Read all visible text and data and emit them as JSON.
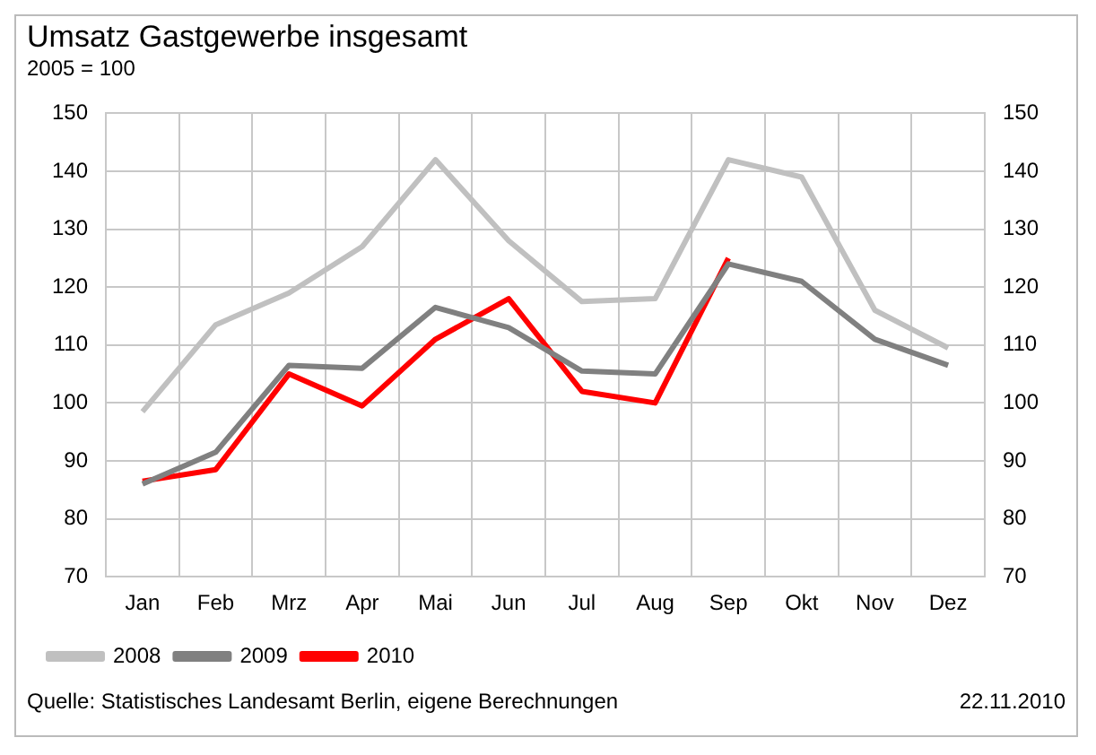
{
  "chart_data": {
    "type": "line",
    "title": "Umsatz Gastgewerbe insgesamt",
    "subtitle": "2005 = 100",
    "categories": [
      "Jan",
      "Feb",
      "Mrz",
      "Apr",
      "Mai",
      "Jun",
      "Jul",
      "Aug",
      "Sep",
      "Okt",
      "Nov",
      "Dez"
    ],
    "series": [
      {
        "name": "2008",
        "color": "#c0c0c0",
        "values": [
          98.5,
          113.5,
          119,
          127,
          142,
          128,
          117.5,
          118,
          142,
          139,
          116,
          109.5
        ]
      },
      {
        "name": "2009",
        "color": "#808080",
        "values": [
          86,
          91.5,
          106.5,
          106,
          116.5,
          113,
          105.5,
          105,
          124,
          121,
          111,
          106.5
        ]
      },
      {
        "name": "2010",
        "color": "#ff0000",
        "values": [
          86.5,
          88.5,
          105,
          99.5,
          111,
          118,
          102,
          100,
          125,
          null,
          null,
          null
        ]
      }
    ],
    "ylim": [
      70,
      150
    ],
    "yticks": [
      70,
      80,
      90,
      100,
      110,
      120,
      130,
      140,
      150
    ],
    "y2lim": [
      70,
      150
    ],
    "y2ticks": [
      70,
      80,
      90,
      100,
      110,
      120,
      130,
      140,
      150
    ],
    "grid": true,
    "legend": "bottom left",
    "marker": "none",
    "line_style": "solid",
    "annotations": [
      "Quelle: Statistisches Landesamt Berlin, eigene Berechnungen",
      "22.11.2010"
    ]
  }
}
